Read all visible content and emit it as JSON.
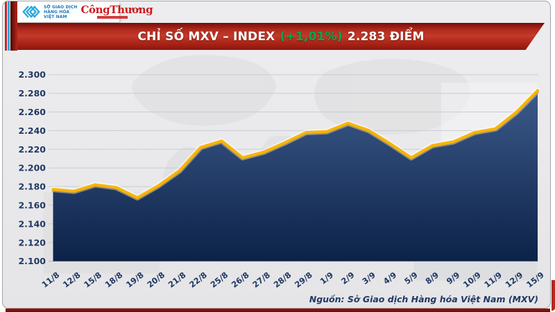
{
  "header": {
    "mxv_logo": {
      "line1": "SỞ GIAO DỊCH",
      "line2": "HÀNG HÓA",
      "line3": "VIỆT NAM",
      "mark_color": "#2aa9e0"
    },
    "congthuong_logo": {
      "name": "CôngThương",
      "color": "#cb1b1e"
    }
  },
  "banner": {
    "title": "CHỈ SỐ MXV – INDEX",
    "change": "(+1,01%)",
    "points": "2.283 ĐIỂM",
    "change_color": "#00a94e",
    "background_color": "#b32a1e"
  },
  "chart_data": {
    "type": "area",
    "title": "CHỈ SỐ MXV – INDEX (+1,01%) 2.283 ĐIỂM",
    "x": [
      "11/8",
      "12/8",
      "15/8",
      "18/8",
      "19/8",
      "20/8",
      "21/8",
      "22/8",
      "25/8",
      "26/8",
      "27/8",
      "28/8",
      "29/8",
      "1/9",
      "2/9",
      "3/9",
      "4/9",
      "5/9",
      "8/9",
      "9/9",
      "10/9",
      "11/9",
      "12/9",
      "15/9"
    ],
    "values": [
      2.177,
      2.175,
      2.182,
      2.179,
      2.168,
      2.181,
      2.197,
      2.222,
      2.229,
      2.211,
      2.217,
      2.227,
      2.238,
      2.239,
      2.248,
      2.24,
      2.226,
      2.211,
      2.224,
      2.228,
      2.238,
      2.242,
      2.26,
      2.283
    ],
    "xlabel": "",
    "ylabel": "",
    "ylim": [
      2.1,
      2.3
    ],
    "ytick_labels": [
      "2.100",
      "2.120",
      "2.140",
      "2.160",
      "2.180",
      "2.200",
      "2.220",
      "2.240",
      "2.260",
      "2.280",
      "2.300"
    ],
    "grid": true,
    "legend": false,
    "line_color": "#f8b500",
    "area_top_color": "#3c5a8a",
    "area_bottom_color": "#0c2248",
    "axis_text_color": "#203864",
    "last_value_label": "2.283",
    "change_label": "+1,01%"
  },
  "footer": {
    "source": "Nguồn: Sở Giao dịch Hàng hóa Việt Nam (MXV)"
  }
}
